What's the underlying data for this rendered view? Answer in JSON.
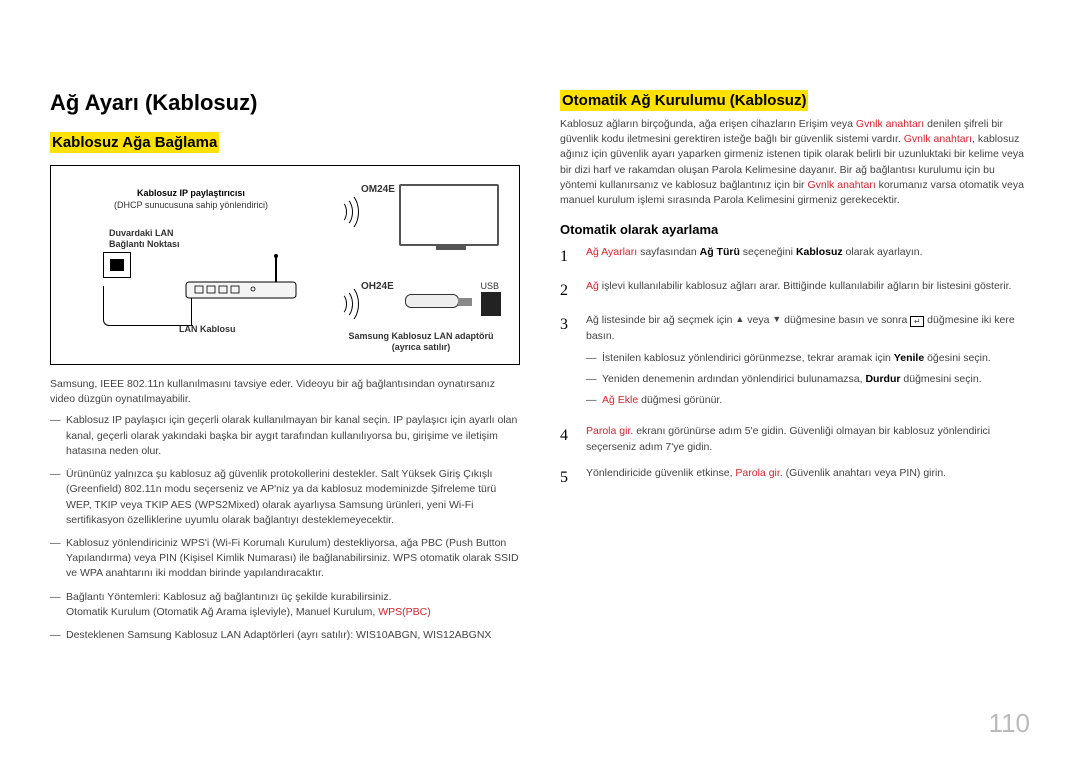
{
  "left": {
    "h1": "Ağ Ayarı (Kablosuz)",
    "h2": "Kablosuz Ağa Bağlama",
    "diagram": {
      "router_label_bold": "Kablosuz IP paylaştırıcısı",
      "router_label_sub": "(DHCP sunucusuna sahip yönlendirici)",
      "lan_port": "Duvardaki LAN Bağlantı Noktası",
      "om24e": "OM24E",
      "oh24e": "OH24E",
      "usb": "USB",
      "adapter_label": "Samsung Kablosuz LAN adaptörü",
      "adapter_sub": "(ayrıca satılır)",
      "lan_cable": "LAN Kablosu"
    },
    "intro": "Samsung, IEEE 802.11n kullanılmasını tavsiye eder. Videoyu bir ağ bağlantısından oynatırsanız video düzgün oynatılmayabilir.",
    "bullets": [
      "Kablosuz IP paylaşıcı için geçerli olarak kullanılmayan bir kanal seçin. IP paylaşıcı için ayarlı olan kanal, geçerli olarak yakındaki başka bir aygıt tarafından kullanılıyorsa bu, girişime ve iletişim hatasına neden olur.",
      "Ürününüz yalnızca şu kablosuz ağ güvenlik protokollerini destekler.\nSalt Yüksek Giriş Çıkışlı (Greenfield) 802.11n modu seçerseniz ve AP'niz ya da kablosuz modeminizde Şifreleme türü WEP, TKIP veya TKIP AES (WPS2Mixed) olarak ayarlıysa Samsung ürünleri, yeni Wi-Fi sertifikasyon özelliklerine uyumlu olarak bağlantıyı desteklemeyecektir.",
      "Kablosuz yönlendiriciniz WPS'i (Wi-Fi Korumalı Kurulum) destekliyorsa, ağa PBC (Push Button Yapılandırma) veya PIN (Kişisel Kimlik Numarası) ile bağlanabilirsiniz. WPS otomatik olarak SSID ve WPA anahtarını iki moddan birinde yapılandıracaktır."
    ],
    "bullet_methods_pre": "Bağlantı Yöntemleri: Kablosuz ağ bağlantınızı üç şekilde kurabilirsiniz.",
    "bullet_methods_main": "Otomatik Kurulum (Otomatik Ağ Arama işleviyle), Manuel Kurulum, ",
    "bullet_methods_red": "WPS(PBC)",
    "bullet_last": "Desteklenen Samsung Kablosuz LAN Adaptörleri (ayrı satılır): WIS10ABGN, WIS12ABGNX"
  },
  "right": {
    "h2": "Otomatik Ağ Kurulumu (Kablosuz)",
    "intro_p1a": "Kablosuz ağların birçoğunda, ağa erişen cihazların Erişim veya ",
    "intro_p1_red1": "Gvnlk anahtarı",
    "intro_p1b": " denilen şifreli bir güvenlik kodu iletmesini gerektiren isteğe bağlı bir güvenlik sistemi vardır. ",
    "intro_p1_red2": "Gvnlk anahtarı",
    "intro_p1c": ", kablosuz ağınız için güvenlik ayarı yaparken girmeniz istenen tipik olarak belirli bir uzunluktaki bir kelime veya bir dizi harf ve rakamdan oluşan Parola Kelimesine dayanır. Bir ağ bağlantısı kurulumu için bu yöntemi kullanırsanız ve kablosuz bağlantınız için bir ",
    "intro_p1_red3": "Gvnlk anahtarı",
    "intro_p1d": " korumanız varsa otomatik veya manuel kurulum işlemi sırasında Parola Kelimesini girmeniz gerekecektir.",
    "h3": "Otomatik olarak ayarlama",
    "steps": [
      {
        "num": "1",
        "parts": [
          {
            "t": "b red",
            "v": "Ağ Ayarları"
          },
          {
            "t": "",
            "v": " sayfasından "
          },
          {
            "t": "b",
            "v": "Ağ Türü"
          },
          {
            "t": "",
            "v": " seçeneğini "
          },
          {
            "t": "b",
            "v": "Kablosuz"
          },
          {
            "t": "",
            "v": "  olarak ayarlayın."
          }
        ]
      },
      {
        "num": "2",
        "parts": [
          {
            "t": "b red",
            "v": "Ağ"
          },
          {
            "t": "",
            "v": " işlevi kullanılabilir kablosuz ağları arar. Bittiğinde kullanılabilir ağların bir listesini gösterir."
          }
        ]
      },
      {
        "num": "3",
        "parts": [
          {
            "t": "",
            "v": "Ağ listesinde bir ağ seçmek için "
          },
          {
            "t": "tri",
            "v": "▲"
          },
          {
            "t": "",
            "v": " veya "
          },
          {
            "t": "tri",
            "v": "▼"
          },
          {
            "t": "",
            "v": " düğmesine basın ve sonra "
          },
          {
            "t": "enter",
            "v": ""
          },
          {
            "t": "",
            "v": " düğmesine iki kere basın."
          }
        ],
        "subs": [
          [
            {
              "t": "",
              "v": "İstenilen kablosuz yönlendirici görünmezse, tekrar aramak için "
            },
            {
              "t": "b",
              "v": "Yenile"
            },
            {
              "t": "",
              "v": " öğesini seçin."
            }
          ],
          [
            {
              "t": "",
              "v": "Yeniden denemenin ardından yönlendirici bulunamazsa, "
            },
            {
              "t": "b",
              "v": "Durdur"
            },
            {
              "t": "",
              "v": " düğmesini seçin."
            }
          ],
          [
            {
              "t": "b red",
              "v": "Ağ Ekle"
            },
            {
              "t": "",
              "v": " düğmesi görünür."
            }
          ]
        ]
      },
      {
        "num": "4",
        "parts": [
          {
            "t": "b red",
            "v": "Parola gir."
          },
          {
            "t": "",
            "v": " ekranı görünürse adım 5'e gidin. Güvenliği olmayan bir kablosuz yönlendirici seçerseniz adım 7'ye gidin."
          }
        ]
      },
      {
        "num": "5",
        "parts": [
          {
            "t": "",
            "v": "Yönlendiricide güvenlik etkinse, "
          },
          {
            "t": "b red",
            "v": "Parola gir."
          },
          {
            "t": "",
            "v": " (Güvenlik anahtarı veya PIN) girin."
          }
        ]
      }
    ]
  },
  "page_num": "110"
}
